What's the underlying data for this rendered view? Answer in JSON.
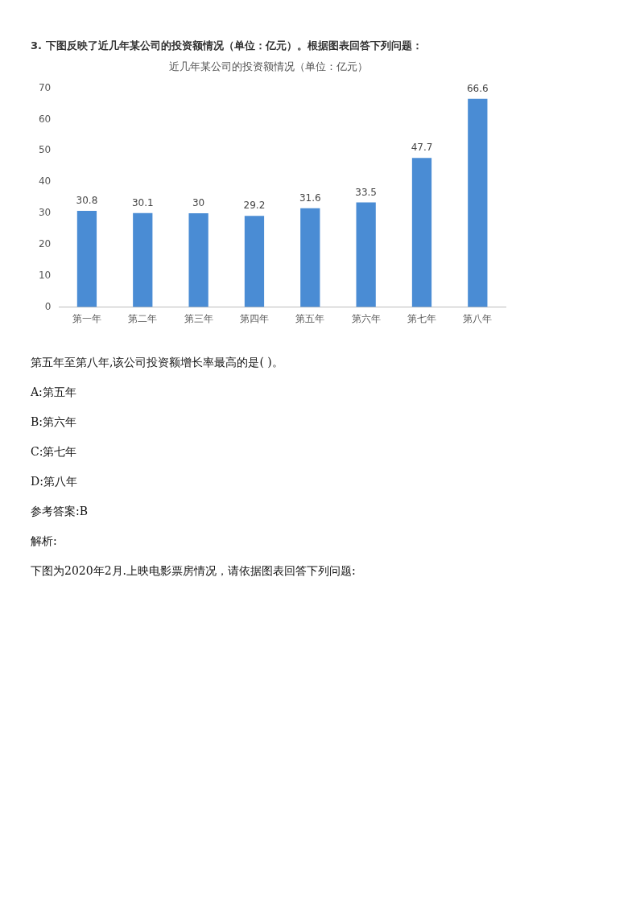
{
  "chart_data": {
    "type": "bar",
    "subtitle": "3. 下图反映了近几年某公司的投资额情况（单位：亿元）。根据图表回答下列问题：",
    "title": "近几年某公司的投资额情况（单位：亿元）",
    "categories": [
      "第一年",
      "第二年",
      "第三年",
      "第四年",
      "第五年",
      "第六年",
      "第七年",
      "第八年"
    ],
    "values": [
      30.8,
      30.1,
      30,
      29.2,
      31.6,
      33.5,
      47.7,
      66.6
    ],
    "color": "#4a8cd4",
    "ylim": [
      0,
      70
    ],
    "yticks": [
      0,
      10,
      20,
      30,
      40,
      50,
      60,
      70
    ],
    "grid": false,
    "data_labels": true,
    "legend": false,
    "annotations": [
      "第五年至第八年,该公司投资额增长率最高的是( )。",
      "A:第五年",
      "B:第六年",
      "C:第七年",
      "D:第八年",
      "参考答案:B",
      "解析:",
      "下图为2020年2月.上映电影票房情况，请依据图表回答下列问题:"
    ]
  }
}
